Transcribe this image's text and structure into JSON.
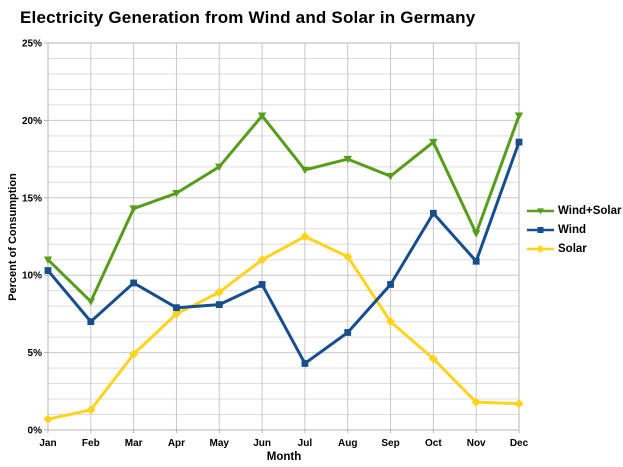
{
  "title": "Electricity Generation from Wind and Solar in Germany",
  "chart_data": {
    "type": "line",
    "title": "Electricity Generation from Wind and Solar in Germany",
    "xlabel": "Month",
    "ylabel": "Percent of Consumption",
    "ylim": [
      0,
      25
    ],
    "y_major_step": 5,
    "y_minor_step": 1,
    "y_tick_labels": [
      "0%",
      "5%",
      "10%",
      "15%",
      "20%",
      "25%"
    ],
    "grid": true,
    "legend_position": "right",
    "categories": [
      "Jan",
      "Feb",
      "Mar",
      "Apr",
      "May",
      "Jun",
      "Jul",
      "Aug",
      "Sep",
      "Oct",
      "Nov",
      "Dec"
    ],
    "series": [
      {
        "name": "Wind+Solar",
        "color": "#579D1C",
        "marker": "triangle-down",
        "values": [
          11.0,
          8.3,
          14.3,
          15.3,
          17.0,
          20.3,
          16.8,
          17.5,
          16.4,
          18.6,
          12.7,
          20.3
        ]
      },
      {
        "name": "Wind",
        "color": "#174E8C",
        "marker": "square",
        "values": [
          10.3,
          7.0,
          9.5,
          7.9,
          8.1,
          9.4,
          4.3,
          6.3,
          9.4,
          14.0,
          10.9,
          18.6
        ]
      },
      {
        "name": "Solar",
        "color": "#FFD320",
        "marker": "diamond",
        "values": [
          0.7,
          1.3,
          4.9,
          7.5,
          8.9,
          11.0,
          12.5,
          11.2,
          7.0,
          4.6,
          1.8,
          1.7
        ]
      }
    ]
  },
  "colors": {
    "background": "#ffffff",
    "minor_grid": "#dedede",
    "major_grid": "#c8c8c8",
    "plot_border": "#b4b4b4",
    "text": "#000000"
  }
}
